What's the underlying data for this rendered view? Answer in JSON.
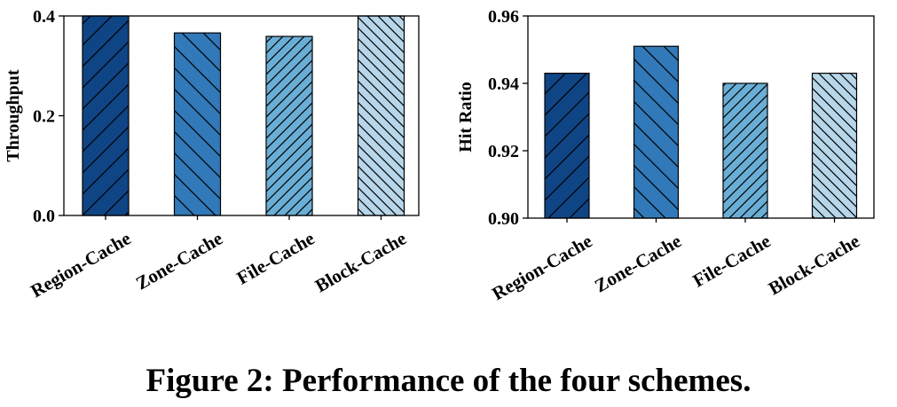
{
  "caption": "Figure 2: Performance of the four schemes.",
  "colors": {
    "region": "#0f4585",
    "zone": "#3179b8",
    "file": "#6aaed6",
    "block": "#b7d6ea",
    "hatch": "#000000",
    "axis": "#000000"
  },
  "chart_data": [
    {
      "type": "bar",
      "categories": [
        "Region-Cache",
        "Zone-Cache",
        "File-Cache",
        "Block-Cache"
      ],
      "values": [
        0.4,
        0.366,
        0.359,
        0.4
      ],
      "hatches": [
        "/",
        "\\",
        "//",
        "\\\\"
      ],
      "ylabel": "Throughput",
      "ylim": [
        0.0,
        0.4
      ],
      "yticks": [
        "0.0",
        "0.2",
        "0.4"
      ],
      "grid": false
    },
    {
      "type": "bar",
      "categories": [
        "Region-Cache",
        "Zone-Cache",
        "File-Cache",
        "Block-Cache"
      ],
      "values": [
        0.943,
        0.951,
        0.94,
        0.943
      ],
      "hatches": [
        "/",
        "\\",
        "//",
        "\\\\"
      ],
      "ylabel": "Hit Ratio",
      "ylim": [
        0.9,
        0.96
      ],
      "yticks": [
        "0.90",
        "0.92",
        "0.94",
        "0.96"
      ],
      "grid": false
    }
  ]
}
